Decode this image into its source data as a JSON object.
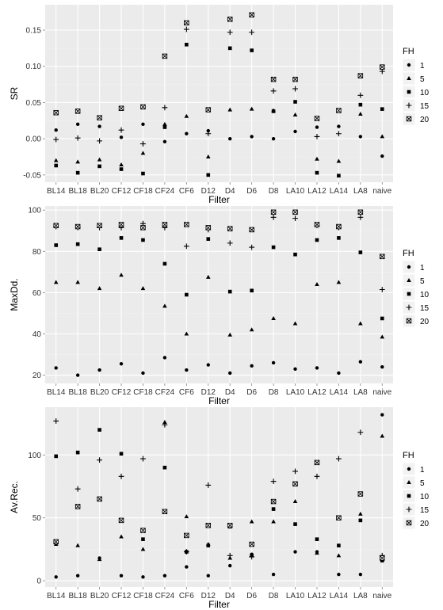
{
  "colors": {
    "panel_bg": "#ebebeb",
    "grid_major": "#ffffff",
    "grid_minor": "#f2f2f2",
    "point": "#000000",
    "text": "#333333"
  },
  "legend": {
    "title": "FH",
    "entries": [
      {
        "label": "1",
        "shape": "circle"
      },
      {
        "label": "5",
        "shape": "triangle"
      },
      {
        "label": "10",
        "shape": "square"
      },
      {
        "label": "15",
        "shape": "plus"
      },
      {
        "label": "20",
        "shape": "boxed-x"
      }
    ]
  },
  "chart_data": [
    {
      "type": "scatter",
      "xlabel": "Filter",
      "ylabel": "SR",
      "categories": [
        "BL14",
        "BL18",
        "BL20",
        "CF12",
        "CF18",
        "CF24",
        "CF6",
        "D12",
        "D4",
        "D6",
        "D8",
        "LA10",
        "LA12",
        "LA14",
        "LA8",
        "naive"
      ],
      "ylim": [
        -0.06,
        0.185
      ],
      "yticks": [
        -0.05,
        0.0,
        0.05,
        0.1,
        0.15
      ],
      "ytick_labels": [
        "-0.05",
        "0.00",
        "0.05",
        "0.10",
        "0.15"
      ],
      "series": [
        {
          "name": "1",
          "values": [
            0.012,
            0.02,
            0.017,
            0.002,
            0.02,
            -0.004,
            0.007,
            0.011,
            0.0,
            0.003,
            0.0,
            0.01,
            0.016,
            0.017,
            0.003,
            -0.024
          ]
        },
        {
          "name": "5",
          "values": [
            -0.03,
            -0.032,
            -0.029,
            -0.036,
            -0.02,
            0.02,
            0.031,
            -0.025,
            0.04,
            0.041,
            0.039,
            0.033,
            -0.028,
            -0.031,
            0.034,
            0.003
          ]
        },
        {
          "name": "10",
          "values": [
            -0.037,
            -0.047,
            -0.038,
            -0.042,
            -0.048,
            0.016,
            0.13,
            -0.05,
            0.125,
            0.122,
            0.038,
            0.051,
            -0.047,
            -0.051,
            0.047,
            0.041
          ]
        },
        {
          "name": "15",
          "values": [
            -0.001,
            0.001,
            -0.003,
            0.012,
            -0.007,
            0.043,
            0.151,
            0.007,
            0.147,
            0.147,
            0.066,
            0.069,
            0.003,
            0.007,
            0.06,
            0.093
          ]
        },
        {
          "name": "20",
          "values": [
            0.036,
            0.038,
            0.029,
            0.042,
            0.044,
            0.114,
            0.16,
            0.04,
            0.165,
            0.171,
            0.082,
            0.082,
            0.028,
            0.039,
            0.087,
            0.099
          ]
        }
      ]
    },
    {
      "type": "scatter",
      "xlabel": "Filter",
      "ylabel": "MaxDd.",
      "categories": [
        "BL14",
        "BL18",
        "BL20",
        "CF12",
        "CF18",
        "CF24",
        "CF6",
        "D12",
        "D4",
        "D6",
        "D8",
        "LA10",
        "LA12",
        "LA14",
        "LA8",
        "naive"
      ],
      "ylim": [
        16,
        102
      ],
      "yticks": [
        20,
        40,
        60,
        80,
        100
      ],
      "ytick_labels": [
        "20",
        "40",
        "60",
        "80",
        "100"
      ],
      "series": [
        {
          "name": "1",
          "values": [
            23.5,
            20.0,
            22.5,
            25.5,
            21.0,
            28.5,
            22.5,
            25.0,
            21.0,
            24.5,
            26.0,
            23.0,
            23.5,
            21.0,
            26.5,
            24.0
          ]
        },
        {
          "name": "5",
          "values": [
            65.0,
            65.0,
            62.0,
            68.5,
            62.0,
            53.5,
            40.0,
            67.5,
            39.5,
            42.0,
            47.5,
            45.0,
            64.0,
            65.0,
            45.0,
            38.5
          ]
        },
        {
          "name": "10",
          "values": [
            83.0,
            83.5,
            81.0,
            86.5,
            85.5,
            74.0,
            59.0,
            86.0,
            60.5,
            61.0,
            82.0,
            78.5,
            85.5,
            86.5,
            79.5,
            47.5
          ]
        },
        {
          "name": "15",
          "values": [
            92.0,
            91.5,
            91.5,
            91.5,
            93.5,
            91.5,
            82.5,
            90.5,
            84.0,
            82.0,
            96.5,
            96.0,
            92.5,
            91.5,
            96.5,
            61.5
          ]
        },
        {
          "name": "20",
          "values": [
            92.5,
            92.0,
            92.5,
            93.0,
            91.5,
            93.0,
            93.0,
            91.5,
            91.0,
            90.5,
            99.0,
            99.0,
            93.0,
            92.0,
            99.0,
            77.5
          ]
        }
      ]
    },
    {
      "type": "scatter",
      "xlabel": "Filter",
      "ylabel": "Av.Rec.",
      "categories": [
        "BL14",
        "BL18",
        "BL20",
        "CF12",
        "CF18",
        "CF24",
        "CF6",
        "D12",
        "D4",
        "D6",
        "D8",
        "LA10",
        "LA12",
        "LA14",
        "LA8",
        "naive"
      ],
      "ylim": [
        -5,
        138
      ],
      "yticks": [
        0,
        50,
        100
      ],
      "ytick_labels": [
        "0",
        "50",
        "100"
      ],
      "series": [
        {
          "name": "1",
          "values": [
            3,
            4,
            18,
            4,
            3,
            4,
            11,
            4,
            12,
            21,
            5,
            23,
            23,
            5,
            5,
            132
          ]
        },
        {
          "name": "5",
          "values": [
            29,
            28,
            17,
            35,
            25,
            126,
            51,
            29,
            18,
            47,
            47,
            63,
            22,
            20,
            53,
            115
          ]
        },
        {
          "name": "10",
          "values": [
            99,
            102,
            120,
            101,
            33,
            90,
            23,
            28,
            43,
            20,
            57,
            45,
            33,
            28,
            48,
            16
          ]
        },
        {
          "name": "15",
          "values": [
            127,
            73,
            96,
            83,
            97,
            124,
            23,
            76,
            20,
            19,
            79,
            87,
            83,
            97,
            118,
            20
          ]
        },
        {
          "name": "20",
          "values": [
            31,
            59,
            65,
            48,
            40,
            55,
            36,
            44,
            44,
            29,
            63,
            77,
            94,
            50,
            69,
            18
          ]
        }
      ]
    }
  ]
}
